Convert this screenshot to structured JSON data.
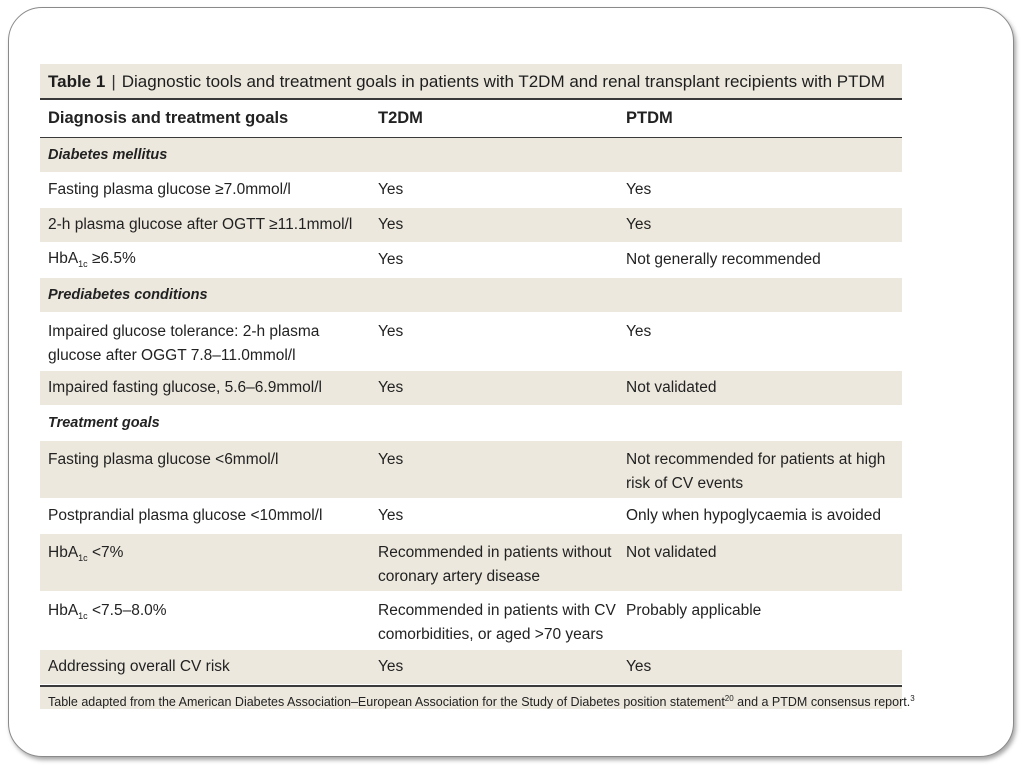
{
  "table": {
    "number": "Table 1",
    "separator": "|",
    "title": "Diagnostic tools and treatment goals in patients with T2DM and renal transplant recipients with PTDM",
    "headers": [
      "Diagnosis and treatment goals",
      "T2DM",
      "PTDM"
    ],
    "sections": [
      {
        "label": "Diabetes mellitus",
        "rows": [
          {
            "c1": "Fasting plasma glucose ≥7.0mmol/l",
            "c2": "Yes",
            "c3": "Yes"
          },
          {
            "c1": "2-h plasma glucose after OGTT ≥11.1mmol/l",
            "c2": "Yes",
            "c3": "Yes"
          },
          {
            "c1_pre": "HbA",
            "c1_sub": "1c",
            "c1_post": " ≥6.5%",
            "c2": "Yes",
            "c3": "Not generally recommended"
          }
        ]
      },
      {
        "label": "Prediabetes conditions",
        "rows": [
          {
            "c1": "Impaired glucose tolerance: 2-h plasma glucose after OGGT 7.8–11.0mmol/l",
            "c2": "Yes",
            "c3": "Yes"
          },
          {
            "c1": "Impaired fasting glucose, 5.6–6.9mmol/l",
            "c2": "Yes",
            "c3": "Not validated"
          }
        ]
      },
      {
        "label": "Treatment goals",
        "rows": [
          {
            "c1": "Fasting plasma glucose <6mmol/l",
            "c2": "Yes",
            "c3": "Not recommended for patients at high risk of CV events"
          },
          {
            "c1": "Postprandial plasma glucose <10mmol/l",
            "c2": "Yes",
            "c3": "Only when hypoglycaemia is avoided"
          },
          {
            "c1_pre": "HbA",
            "c1_sub": "1c",
            "c1_post": " <7%",
            "c2": "Recommended in patients without coronary artery disease",
            "c3": "Not validated"
          },
          {
            "c1_pre": "HbA",
            "c1_sub": "1c",
            "c1_post": " <7.5–8.0%",
            "c2": "Recommended in patients with CV comorbidities, or aged >70 years",
            "c3": "Probably applicable"
          },
          {
            "c1": "Addressing overall CV risk",
            "c2": "Yes",
            "c3": "Yes"
          }
        ]
      }
    ],
    "footnote": {
      "part1": "Table adapted from the American Diabetes Association–European Association for the Study of Diabetes position statement",
      "ref1": "20",
      "part2": " and a PTDM consensus report.",
      "ref2": "3"
    }
  },
  "colors": {
    "shade": "#ece8dd",
    "rule": "#3a3a3a"
  }
}
